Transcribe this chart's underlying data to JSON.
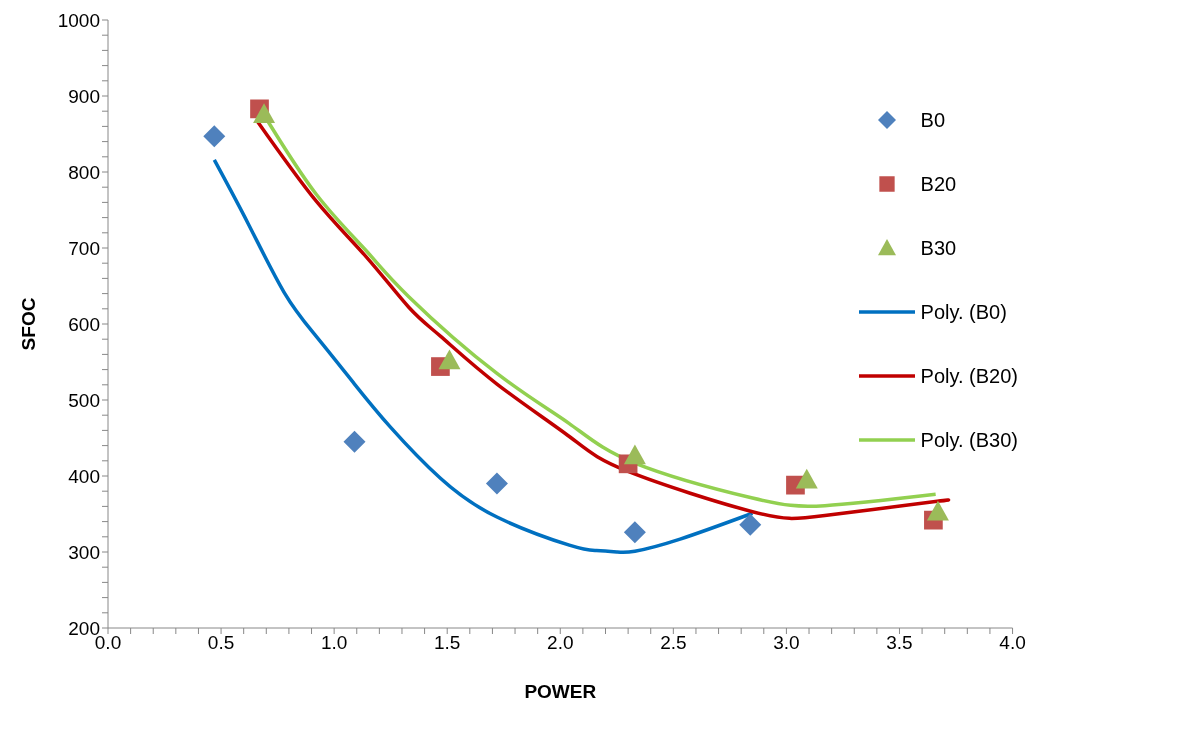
{
  "chart_data": {
    "type": "scatter",
    "xlabel": "POWER",
    "ylabel": "SFOC",
    "xlim": [
      0,
      4
    ],
    "ylim": [
      200,
      1000
    ],
    "xticks": [
      {
        "value": 0,
        "label": "0.0"
      },
      {
        "value": 0.1,
        "label": null
      },
      {
        "value": 0.2,
        "label": null
      },
      {
        "value": 0.3,
        "label": null
      },
      {
        "value": 0.4,
        "label": null
      },
      {
        "value": 0.5,
        "label": "0.5"
      },
      {
        "value": 0.6,
        "label": null
      },
      {
        "value": 0.7,
        "label": null
      },
      {
        "value": 0.8,
        "label": null
      },
      {
        "value": 0.9,
        "label": null
      },
      {
        "value": 1,
        "label": "1.0"
      },
      {
        "value": 1.1,
        "label": null
      },
      {
        "value": 1.2,
        "label": null
      },
      {
        "value": 1.3,
        "label": null
      },
      {
        "value": 1.4,
        "label": null
      },
      {
        "value": 1.5,
        "label": "1.5"
      },
      {
        "value": 1.6,
        "label": null
      },
      {
        "value": 1.7,
        "label": null
      },
      {
        "value": 1.8,
        "label": null
      },
      {
        "value": 1.9,
        "label": null
      },
      {
        "value": 2,
        "label": "2.0"
      },
      {
        "value": 2.1,
        "label": null
      },
      {
        "value": 2.2,
        "label": null
      },
      {
        "value": 2.3,
        "label": null
      },
      {
        "value": 2.4,
        "label": null
      },
      {
        "value": 2.5,
        "label": "2.5"
      },
      {
        "value": 2.6,
        "label": null
      },
      {
        "value": 2.7,
        "label": null
      },
      {
        "value": 2.8,
        "label": null
      },
      {
        "value": 2.9,
        "label": null
      },
      {
        "value": 3,
        "label": "3.0"
      },
      {
        "value": 3.1,
        "label": null
      },
      {
        "value": 3.2,
        "label": null
      },
      {
        "value": 3.3,
        "label": null
      },
      {
        "value": 3.4,
        "label": null
      },
      {
        "value": 3.5,
        "label": "3.5"
      },
      {
        "value": 3.6,
        "label": null
      },
      {
        "value": 3.7,
        "label": null
      },
      {
        "value": 3.8,
        "label": null
      },
      {
        "value": 3.9,
        "label": null
      },
      {
        "value": 4,
        "label": "4.0"
      }
    ],
    "yticks": [
      200,
      {
        "value": 220,
        "label": null
      },
      {
        "value": 240,
        "label": null
      },
      {
        "value": 260,
        "label": null
      },
      {
        "value": 280,
        "label": null
      },
      300,
      {
        "value": 320,
        "label": null
      },
      {
        "value": 340,
        "label": null
      },
      {
        "value": 360,
        "label": null
      },
      {
        "value": 380,
        "label": null
      },
      400,
      {
        "value": 420,
        "label": null
      },
      {
        "value": 440,
        "label": null
      },
      {
        "value": 460,
        "label": null
      },
      {
        "value": 480,
        "label": null
      },
      500,
      {
        "value": 520,
        "label": null
      },
      {
        "value": 540,
        "label": null
      },
      {
        "value": 560,
        "label": null
      },
      {
        "value": 580,
        "label": null
      },
      600,
      {
        "value": 620,
        "label": null
      },
      {
        "value": 640,
        "label": null
      },
      {
        "value": 660,
        "label": null
      },
      {
        "value": 680,
        "label": null
      },
      700,
      {
        "value": 720,
        "label": null
      },
      {
        "value": 740,
        "label": null
      },
      {
        "value": 760,
        "label": null
      },
      {
        "value": 780,
        "label": null
      },
      800,
      {
        "value": 820,
        "label": null
      },
      {
        "value": 840,
        "label": null
      },
      {
        "value": 860,
        "label": null
      },
      {
        "value": 880,
        "label": null
      },
      900,
      {
        "value": 920,
        "label": null
      },
      {
        "value": 940,
        "label": null
      },
      {
        "value": 960,
        "label": null
      },
      {
        "value": 980,
        "label": null
      },
      1000
    ],
    "grid": false,
    "legend": "right",
    "series": [
      {
        "name": "B0",
        "marker": "diamond",
        "color": "#4f81bd",
        "x": [
          0.47,
          1.09,
          1.72,
          2.33,
          2.84
        ],
        "values": [
          847,
          445,
          390,
          326,
          336
        ]
      },
      {
        "name": "B20",
        "marker": "square",
        "color": "#c0504d",
        "x": [
          0.67,
          1.47,
          2.3,
          3.04,
          3.65
        ],
        "values": [
          883,
          544,
          416,
          388,
          342
        ]
      },
      {
        "name": "B30",
        "marker": "triangle",
        "color": "#9bbb59",
        "x": [
          0.69,
          1.51,
          2.33,
          3.09,
          3.67
        ],
        "values": [
          876,
          552,
          427,
          395,
          353
        ]
      },
      {
        "name": "Poly. (B0)",
        "type": "line",
        "marker": "none",
        "color": "#0070c0",
        "x": [
          0.47,
          0.62,
          0.78,
          0.92,
          1.09,
          1.25,
          1.47,
          1.72,
          2.04,
          2.16,
          2.25,
          2.33,
          2.53,
          2.85
        ],
        "values": [
          816,
          732,
          641,
          584,
          521,
          464,
          397,
          346,
          309,
          302,
          300,
          301,
          317,
          351
        ]
      },
      {
        "name": "Poly. (B20)",
        "type": "line",
        "marker": "none",
        "color": "#c00000",
        "x": [
          0.66,
          0.92,
          1.14,
          1.33,
          1.47,
          1.72,
          2.04,
          2.3,
          2.85,
          3.17,
          3.65,
          3.68
        ],
        "values": [
          867,
          762,
          689,
          622,
          584,
          521,
          452,
          406,
          353,
          348,
          366,
          367
        ]
      },
      {
        "name": "Poly. (B30)",
        "type": "line",
        "marker": "none",
        "color": "#92d050",
        "x": [
          0.69,
          0.92,
          1.14,
          1.33,
          1.72,
          2.04,
          2.33,
          2.85,
          3.17,
          3.66
        ],
        "values": [
          875,
          771,
          697,
          636,
          535,
          469,
          417,
          371,
          361,
          376
        ]
      }
    ]
  }
}
